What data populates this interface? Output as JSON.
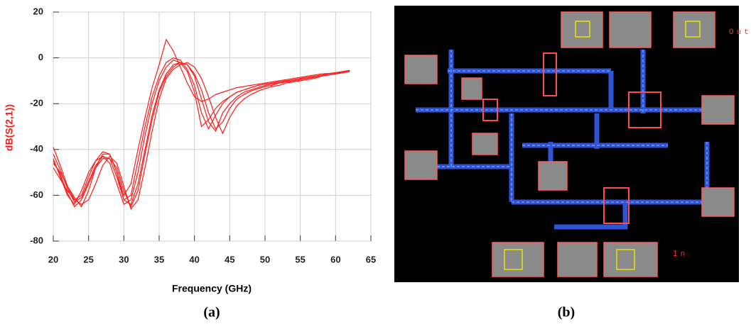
{
  "chart_data": {
    "type": "line",
    "xlabel": "Frequency (GHz)",
    "ylabel": "dB(S(2,1))",
    "color": "#ff1a1a",
    "grid": true,
    "xlim": [
      20,
      65
    ],
    "xticks": [
      20,
      25,
      30,
      35,
      40,
      45,
      50,
      55,
      60,
      65
    ],
    "ylim": [
      -80,
      20
    ],
    "yticks": [
      -80,
      -60,
      -40,
      -20,
      0,
      20
    ],
    "x": [
      20,
      21,
      22,
      23,
      24,
      25,
      26,
      27,
      28,
      29,
      30,
      31,
      32,
      33,
      34,
      35,
      36,
      37,
      38,
      39,
      40,
      41,
      42,
      43,
      44,
      45,
      46,
      47,
      48,
      49,
      50,
      51,
      52,
      53,
      54,
      55,
      56,
      57,
      58,
      59,
      60,
      61,
      62
    ],
    "series": [
      {
        "values": [
          -39,
          -47,
          -56,
          -62,
          -60,
          -52,
          -45,
          -41,
          -42,
          -50,
          -60,
          -55,
          -40,
          -26,
          -13,
          -3,
          8,
          3,
          -4,
          -11,
          -17,
          -19,
          -18,
          -16,
          -15,
          -14,
          -13,
          -12.5,
          -12,
          -11.5,
          -11,
          -10.5,
          -10,
          -9.5,
          -9,
          -8.5,
          -8,
          -7.5,
          -7,
          -6.8,
          -6.5,
          -6,
          -5.5
        ]
      },
      {
        "values": [
          -44,
          -52,
          -60,
          -64,
          -58,
          -50,
          -45,
          -43,
          -46,
          -55,
          -64,
          -62,
          -50,
          -34,
          -20,
          -10,
          -4,
          -1,
          -2,
          -6,
          -15,
          -30,
          -27,
          -22,
          -19,
          -17,
          -15,
          -14,
          -13,
          -12,
          -11.5,
          -11,
          -10.5,
          -10,
          -9.5,
          -9,
          -8.5,
          -8,
          -7.5,
          -7,
          -6.5,
          -6,
          -5.5
        ]
      },
      {
        "values": [
          -46,
          -50,
          -56,
          -61,
          -65,
          -58,
          -48,
          -42,
          -42,
          -50,
          -62,
          -64,
          -55,
          -40,
          -25,
          -14,
          -7,
          -3,
          -2,
          -3,
          -8,
          -18,
          -28,
          -32,
          -24,
          -20,
          -17,
          -15,
          -14,
          -13,
          -12,
          -11.5,
          -11,
          -10.5,
          -10,
          -9.5,
          -9,
          -8.5,
          -8,
          -7.5,
          -7,
          -6,
          -5.5
        ]
      },
      {
        "values": [
          -48,
          -53,
          -58,
          -62,
          -64,
          -62,
          -55,
          -47,
          -43,
          -46,
          -56,
          -66,
          -62,
          -48,
          -32,
          -18,
          -9,
          -5,
          -3,
          -2,
          -4,
          -9,
          -17,
          -26,
          -33,
          -26,
          -21,
          -18,
          -16,
          -14.5,
          -13.5,
          -12.5,
          -12,
          -11,
          -10.5,
          -10,
          -9.5,
          -9,
          -8,
          -7.5,
          -7,
          -6.5,
          -6
        ]
      },
      {
        "values": [
          -42,
          -49,
          -57,
          -63,
          -61,
          -54,
          -47,
          -43,
          -44,
          -52,
          -62,
          -60,
          -45,
          -30,
          -17,
          -8,
          -2,
          0,
          -1,
          -5,
          -12,
          -24,
          -31,
          -25,
          -20,
          -17,
          -15,
          -14,
          -13,
          -12,
          -11.5,
          -11,
          -10.5,
          -10,
          -9.5,
          -9,
          -8.5,
          -8,
          -7.5,
          -7,
          -6.5,
          -6,
          -5.5
        ]
      },
      {
        "values": [
          -45,
          -51,
          -59,
          -65,
          -62,
          -55,
          -48,
          -44,
          -44,
          -48,
          -58,
          -65,
          -58,
          -42,
          -27,
          -15,
          -8,
          -4,
          -2,
          -3,
          -7,
          -14,
          -24,
          -31,
          -28,
          -22,
          -18,
          -16,
          -14.5,
          -13.5,
          -12.5,
          -12,
          -11,
          -10.5,
          -10,
          -9.5,
          -9,
          -8.5,
          -8,
          -7.5,
          -7,
          -6.5,
          -6
        ]
      }
    ]
  },
  "layout": {
    "labels": [
      "Out",
      "In"
    ]
  },
  "captions": [
    "(a)",
    "(b)"
  ]
}
